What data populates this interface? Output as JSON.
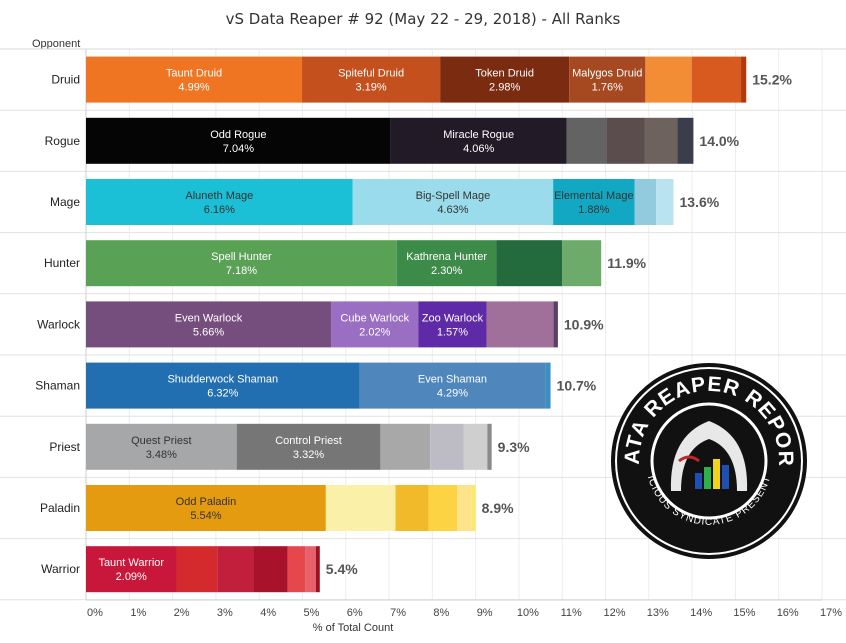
{
  "title": "vS Data Reaper # 92 (May 22 - 29, 2018) - All Ranks",
  "row_header": "Opponent",
  "logo": {
    "top_text": "DATA REAPER REPORT",
    "bottom_text": "VICIOUS SYNDICATE PRESENTS"
  },
  "chart_data": {
    "type": "bar",
    "orientation": "horizontal-stacked",
    "xlabel": "% of Total Count",
    "xlim": [
      0,
      17
    ],
    "xticks": [
      "0%",
      "1%",
      "2%",
      "3%",
      "4%",
      "5%",
      "6%",
      "7%",
      "8%",
      "9%",
      "10%",
      "11%",
      "12%",
      "13%",
      "14%",
      "15%",
      "16%",
      "17%"
    ],
    "grid": true,
    "rows": [
      {
        "name": "Druid",
        "total": "15.2%",
        "segments": [
          {
            "name": "Taunt Druid",
            "value": 4.99,
            "label": "4.99%",
            "color": "#ef7523"
          },
          {
            "name": "Spiteful Druid",
            "value": 3.19,
            "label": "3.19%",
            "color": "#c4501e"
          },
          {
            "name": "Token Druid",
            "value": 2.98,
            "label": "2.98%",
            "color": "#7a2b10"
          },
          {
            "name": "Malygos Druid",
            "value": 1.76,
            "label": "1.76%",
            "color": "#a74920"
          },
          {
            "name": "",
            "value": 1.07,
            "color": "#f28c35"
          },
          {
            "name": "",
            "value": 1.14,
            "color": "#d85a1f"
          },
          {
            "name": "",
            "value": 0.12,
            "color": "#b03a0c"
          }
        ]
      },
      {
        "name": "Rogue",
        "total": "14.0%",
        "segments": [
          {
            "name": "Odd Rogue",
            "value": 7.04,
            "label": "7.04%",
            "color": "#050505"
          },
          {
            "name": "Miracle Rogue",
            "value": 4.06,
            "label": "4.06%",
            "color": "#231a28"
          },
          {
            "name": "",
            "value": 0.92,
            "color": "#636363"
          },
          {
            "name": "",
            "value": 0.89,
            "color": "#5b4d4d"
          },
          {
            "name": "",
            "value": 0.75,
            "color": "#6d625d"
          },
          {
            "name": "",
            "value": 0.37,
            "color": "#3a3e4c"
          }
        ]
      },
      {
        "name": "Mage",
        "total": "13.6%",
        "segments": [
          {
            "name": "Aluneth Mage",
            "value": 6.16,
            "label": "6.16%",
            "color": "#1bbfd6"
          },
          {
            "name": "Big-Spell Mage",
            "value": 4.63,
            "label": "4.63%",
            "color": "#9adceb"
          },
          {
            "name": "Elemental Mage",
            "value": 1.88,
            "label": "1.88%",
            "color": "#12a8c4"
          },
          {
            "name": "",
            "value": 0.5,
            "color": "#92cbde"
          },
          {
            "name": "",
            "value": 0.4,
            "color": "#b8e3ef"
          }
        ]
      },
      {
        "name": "Hunter",
        "total": "11.9%",
        "segments": [
          {
            "name": "Spell Hunter",
            "value": 7.18,
            "label": "7.18%",
            "color": "#58a155"
          },
          {
            "name": "Kathrena Hunter",
            "value": 2.3,
            "label": "2.30%",
            "color": "#3d8b48"
          },
          {
            "name": "",
            "value": 1.52,
            "color": "#236a3c"
          },
          {
            "name": "",
            "value": 0.9,
            "color": "#6cab6a"
          }
        ]
      },
      {
        "name": "Warlock",
        "total": "10.9%",
        "segments": [
          {
            "name": "Even Warlock",
            "value": 5.66,
            "label": "5.66%",
            "color": "#754e7e"
          },
          {
            "name": "Cube Warlock",
            "value": 2.02,
            "label": "2.02%",
            "color": "#9a6ec3"
          },
          {
            "name": "Zoo Warlock",
            "value": 1.57,
            "label": "1.57%",
            "color": "#5e2aa7"
          },
          {
            "name": "",
            "value": 1.55,
            "color": "#a06f9a"
          },
          {
            "name": "",
            "value": 0.1,
            "color": "#5a3f6a"
          }
        ]
      },
      {
        "name": "Shaman",
        "total": "10.7%",
        "segments": [
          {
            "name": "Shudderwock Shaman",
            "value": 6.32,
            "label": "6.32%",
            "color": "#216fb0"
          },
          {
            "name": "Even Shaman",
            "value": 4.29,
            "label": "4.29%",
            "color": "#4f86bb"
          },
          {
            "name": "",
            "value": 0.12,
            "color": "#3c8fc2"
          }
        ]
      },
      {
        "name": "Priest",
        "total": "9.3%",
        "segments": [
          {
            "name": "Quest Priest",
            "value": 3.48,
            "label": "3.48%",
            "color": "#a5a7a9"
          },
          {
            "name": "Control Priest",
            "value": 3.32,
            "label": "3.32%",
            "color": "#767676"
          },
          {
            "name": "",
            "value": 1.15,
            "color": "#a8a8a8"
          },
          {
            "name": "",
            "value": 0.77,
            "color": "#bdbcc4"
          },
          {
            "name": "",
            "value": 0.55,
            "color": "#cfcfcf"
          },
          {
            "name": "",
            "value": 0.1,
            "color": "#8a8a8a"
          }
        ]
      },
      {
        "name": "Paladin",
        "total": "8.9%",
        "segments": [
          {
            "name": "Odd Paladin",
            "value": 5.54,
            "label": "5.54%",
            "color": "#e49b0f"
          },
          {
            "name": "",
            "value": 1.61,
            "color": "#fbf0a8"
          },
          {
            "name": "",
            "value": 0.76,
            "color": "#f0ba2a"
          },
          {
            "name": "",
            "value": 0.66,
            "color": "#fcd443"
          },
          {
            "name": "",
            "value": 0.33,
            "color": "#fde38a"
          },
          {
            "name": "",
            "value": 0.1,
            "color": "#fbe86f"
          }
        ]
      },
      {
        "name": "Warrior",
        "total": "5.4%",
        "segments": [
          {
            "name": "Taunt Warrior",
            "value": 2.09,
            "label": "2.09%",
            "color": "#c8173a"
          },
          {
            "name": "",
            "value": 0.95,
            "color": "#d42a2e"
          },
          {
            "name": "",
            "value": 0.82,
            "color": "#c21f3c"
          },
          {
            "name": "",
            "value": 0.8,
            "color": "#a8122a"
          },
          {
            "name": "",
            "value": 0.4,
            "color": "#e5474d"
          },
          {
            "name": "",
            "value": 0.25,
            "color": "#e8616a"
          },
          {
            "name": "",
            "value": 0.09,
            "color": "#9d1020"
          }
        ]
      }
    ]
  }
}
